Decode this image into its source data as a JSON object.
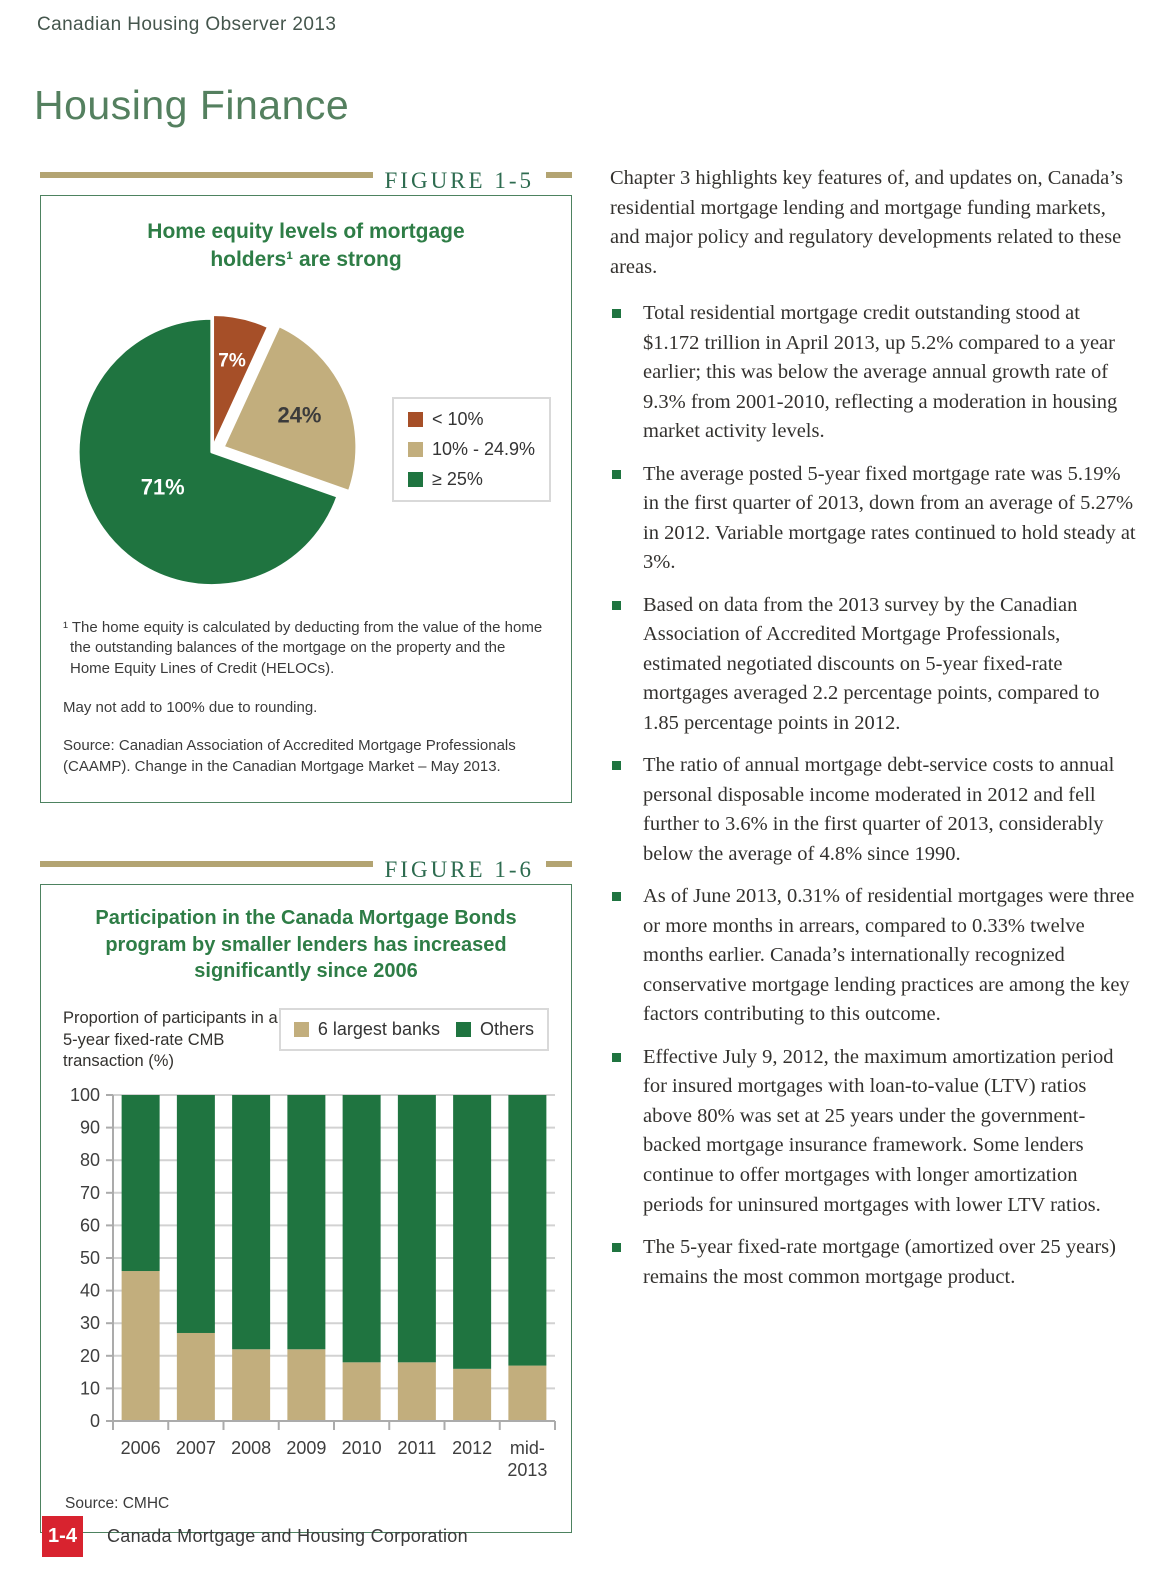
{
  "page": {
    "header": "Canadian Housing Observer 2013",
    "title": "Housing Finance",
    "footer": {
      "page_number": "1-4",
      "organization": "Canada Mortgage and Housing Corporation"
    }
  },
  "colors": {
    "green": "#1f7440",
    "tan": "#c2ae7d",
    "rust": "#a64f28",
    "gold_rule": "#b3a472",
    "figure_title_green": "#2e7d46",
    "figure_label_green": "#2d6b4f",
    "box_border_green": "#4d8260",
    "body_text": "#33312e",
    "footer_red": "#d8232f",
    "gridline": "#d2d2d2",
    "axis": "#ababab"
  },
  "figure1": {
    "label": "FIGURE 1-5",
    "title": "Home equity levels of mortgage holders¹ are strong",
    "footnote": "¹ The home equity is calculated by deducting from the value of the home the outstanding balances of the mortgage on the property and the Home Equity Lines of Credit (HELOCs).",
    "note": "May not add to 100% due to rounding.",
    "source": "Source: Canadian Association of Accredited Mortgage Professionals (CAAMP). Change in the Canadian Mortgage Market – May 2013."
  },
  "figure2": {
    "label": "FIGURE 1-6",
    "title": "Participation in the Canada Mortgage Bonds program by smaller lenders has increased significantly since 2006",
    "subtitle": "Proportion of participants in a 5-year fixed-rate CMB transaction (%)",
    "source": "Source: CMHC"
  },
  "main": {
    "intro": "Chapter 3 highlights key features of, and updates on, Canada’s residential mortgage lending and mortgage funding markets, and major policy and regulatory developments related to these areas.",
    "bullets": [
      "Total residential mortgage credit outstanding stood at $1.172 trillion in April 2013, up 5.2% compared to a year earlier; this was below the average annual growth rate of 9.3% from 2001-2010, reflecting a moderation in housing market activity levels.",
      "The average posted 5-year fixed mortgage rate was 5.19% in the first quarter of 2013, down from an average of 5.27% in 2012. Variable mortgage rates continued to hold steady at 3%.",
      "Based on data from the 2013 survey by the Canadian Association of Accredited Mortgage Professionals, estimated negotiated discounts on 5-year fixed-rate mortgages averaged 2.2 percentage points, compared to 1.85 percentage points in 2012.",
      "The ratio of annual mortgage debt-service costs to annual personal disposable income moderated in 2012 and fell further to 3.6% in the first quarter of 2013, considerably below the average of 4.8% since 1990.",
      "As of June 2013, 0.31% of residential mortgages were three or more months in arrears, compared to 0.33% twelve months earlier. Canada’s internationally recognized conservative mortgage lending practices are among the key factors contributing to this outcome.",
      "Effective July 9, 2012, the maximum amortization period for insured mortgages with loan-to-value (LTV) ratios above 80% was set at 25 years under the government-backed mortgage insurance framework. Some lenders continue to offer mortgages with longer amortization periods for uninsured mortgages with lower LTV ratios.",
      "The 5-year fixed-rate mortgage (amortized over 25 years) remains the most common mortgage product."
    ]
  },
  "chart_data": [
    {
      "type": "pie",
      "title": "Home equity levels of mortgage holders are strong",
      "legend_position": "right",
      "slices": [
        {
          "label": "< 10%",
          "value": 7,
          "display": "7%",
          "color": "#a64f28",
          "explode": 4,
          "label_color": "#ffffff",
          "label_r": 0.68,
          "label_size": 20
        },
        {
          "label": "10% - 24.9%",
          "value": 24,
          "display": "24%",
          "color": "#c2ae7d",
          "explode": 13,
          "label_color": "#3b3b3b",
          "label_r": 0.62,
          "label_size": 23
        },
        {
          "label": "≥ 25%",
          "value": 71,
          "display": "71%",
          "color": "#1f7440",
          "explode": 0,
          "label_color": "#ffffff",
          "label_r": 0.45,
          "label_size": 23
        }
      ]
    },
    {
      "type": "bar",
      "stacked": true,
      "grid": true,
      "ylim": [
        0,
        100
      ],
      "ytick_step": 10,
      "ylabel": "Proportion of participants in a 5-year fixed-rate CMB transaction (%)",
      "legend_position": "top-right",
      "categories": [
        "2006",
        "2007",
        "2008",
        "2009",
        "2010",
        "2011",
        "2012",
        "mid-\n2013"
      ],
      "series": [
        {
          "name": "6 largest banks",
          "color": "#c2ae7d",
          "values": [
            46,
            27,
            22,
            22,
            18,
            18,
            16,
            17
          ]
        },
        {
          "name": "Others",
          "color": "#1f7440",
          "values": [
            54,
            73,
            78,
            78,
            82,
            82,
            84,
            83
          ]
        }
      ]
    }
  ]
}
